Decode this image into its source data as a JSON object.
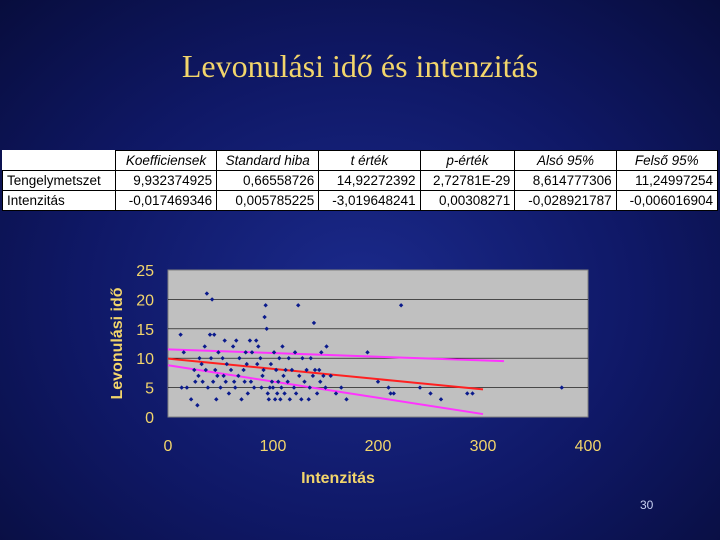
{
  "slide": {
    "title": "Levonulási idő és intenzitás",
    "page_number": "30"
  },
  "regression_table": {
    "headers": [
      "",
      "Koefficiensek",
      "Standard hiba",
      "t érték",
      "p-érték",
      "Alsó 95%",
      "Felső 95%"
    ],
    "rows": [
      [
        "Tengelymetszet",
        "9,932374925",
        "0,66558726",
        "14,92272392",
        "2,72781E-29",
        "8,614777306",
        "11,24997254"
      ],
      [
        "Intenzitás",
        "-0,017469346",
        "0,005785225",
        "-3,019648241",
        "0,00308271",
        "-0,028921787",
        "-0,006016904"
      ]
    ]
  },
  "chart_data": {
    "type": "scatter",
    "xlabel": "Intenzitás",
    "ylabel": "Levonulási idő",
    "xlim": [
      0,
      400
    ],
    "ylim": [
      0,
      25
    ],
    "x_ticks": [
      "0",
      "100",
      "200",
      "300",
      "400"
    ],
    "y_ticks": [
      "0",
      "5",
      "10",
      "15",
      "20",
      "25"
    ],
    "grid": "horizontal",
    "legend": "none",
    "colors": {
      "background": "#c0c0c0",
      "points": "#0a1a8c",
      "regression": "#ff2020",
      "confidence": "#ff33ff",
      "axis_text": "#f2d56b"
    },
    "points": [
      [
        12,
        14
      ],
      [
        13,
        5
      ],
      [
        15,
        11
      ],
      [
        18,
        5
      ],
      [
        22,
        3
      ],
      [
        25,
        8
      ],
      [
        26,
        6
      ],
      [
        28,
        2
      ],
      [
        29,
        7
      ],
      [
        30,
        10
      ],
      [
        32,
        9
      ],
      [
        33,
        6
      ],
      [
        35,
        12
      ],
      [
        36,
        8
      ],
      [
        37,
        21
      ],
      [
        38,
        5
      ],
      [
        40,
        14
      ],
      [
        41,
        10
      ],
      [
        42,
        20
      ],
      [
        43,
        6
      ],
      [
        44,
        14
      ],
      [
        45,
        8
      ],
      [
        46,
        3
      ],
      [
        47,
        7
      ],
      [
        48,
        11
      ],
      [
        50,
        5
      ],
      [
        52,
        10
      ],
      [
        53,
        7
      ],
      [
        54,
        13
      ],
      [
        55,
        6
      ],
      [
        56,
        9
      ],
      [
        58,
        4
      ],
      [
        60,
        8
      ],
      [
        62,
        12
      ],
      [
        63,
        6
      ],
      [
        64,
        5
      ],
      [
        65,
        13
      ],
      [
        67,
        7
      ],
      [
        68,
        10
      ],
      [
        70,
        3
      ],
      [
        72,
        8
      ],
      [
        73,
        6
      ],
      [
        74,
        11
      ],
      [
        75,
        9
      ],
      [
        76,
        4
      ],
      [
        78,
        13
      ],
      [
        79,
        6
      ],
      [
        80,
        11
      ],
      [
        82,
        5
      ],
      [
        84,
        13
      ],
      [
        85,
        9
      ],
      [
        86,
        12
      ],
      [
        88,
        10
      ],
      [
        89,
        5
      ],
      [
        90,
        7
      ],
      [
        91,
        8
      ],
      [
        92,
        17
      ],
      [
        93,
        19
      ],
      [
        94,
        15
      ],
      [
        95,
        4
      ],
      [
        96,
        3
      ],
      [
        97,
        5
      ],
      [
        98,
        9
      ],
      [
        99,
        6
      ],
      [
        100,
        5
      ],
      [
        101,
        11
      ],
      [
        102,
        3
      ],
      [
        103,
        8
      ],
      [
        104,
        4
      ],
      [
        105,
        6
      ],
      [
        106,
        10
      ],
      [
        107,
        3
      ],
      [
        108,
        5
      ],
      [
        109,
        12
      ],
      [
        110,
        7
      ],
      [
        111,
        4
      ],
      [
        112,
        8
      ],
      [
        114,
        6
      ],
      [
        115,
        10
      ],
      [
        116,
        3
      ],
      [
        118,
        8
      ],
      [
        120,
        5
      ],
      [
        121,
        11
      ],
      [
        122,
        4
      ],
      [
        124,
        19
      ],
      [
        125,
        7
      ],
      [
        127,
        3
      ],
      [
        128,
        10
      ],
      [
        130,
        6
      ],
      [
        132,
        8
      ],
      [
        134,
        3
      ],
      [
        135,
        5
      ],
      [
        136,
        10
      ],
      [
        138,
        7
      ],
      [
        139,
        16
      ],
      [
        140,
        8
      ],
      [
        142,
        4
      ],
      [
        144,
        8
      ],
      [
        145,
        6
      ],
      [
        146,
        11
      ],
      [
        148,
        7
      ],
      [
        150,
        5
      ],
      [
        151,
        12
      ],
      [
        155,
        7
      ],
      [
        160,
        4
      ],
      [
        165,
        5
      ],
      [
        170,
        3
      ],
      [
        190,
        11
      ],
      [
        200,
        6
      ],
      [
        210,
        5
      ],
      [
        212,
        4
      ],
      [
        215,
        4
      ],
      [
        222,
        19
      ],
      [
        240,
        5
      ],
      [
        250,
        4
      ],
      [
        260,
        3
      ],
      [
        285,
        4
      ],
      [
        290,
        4
      ],
      [
        375,
        5
      ]
    ],
    "regression_line": [
      [
        0,
        9.9324
      ],
      [
        300,
        4.6916
      ]
    ],
    "upper_confidence_line": [
      [
        0,
        11.5
      ],
      [
        320,
        9.5
      ]
    ],
    "lower_confidence_line": [
      [
        0,
        8.8
      ],
      [
        300,
        0.5
      ]
    ]
  }
}
